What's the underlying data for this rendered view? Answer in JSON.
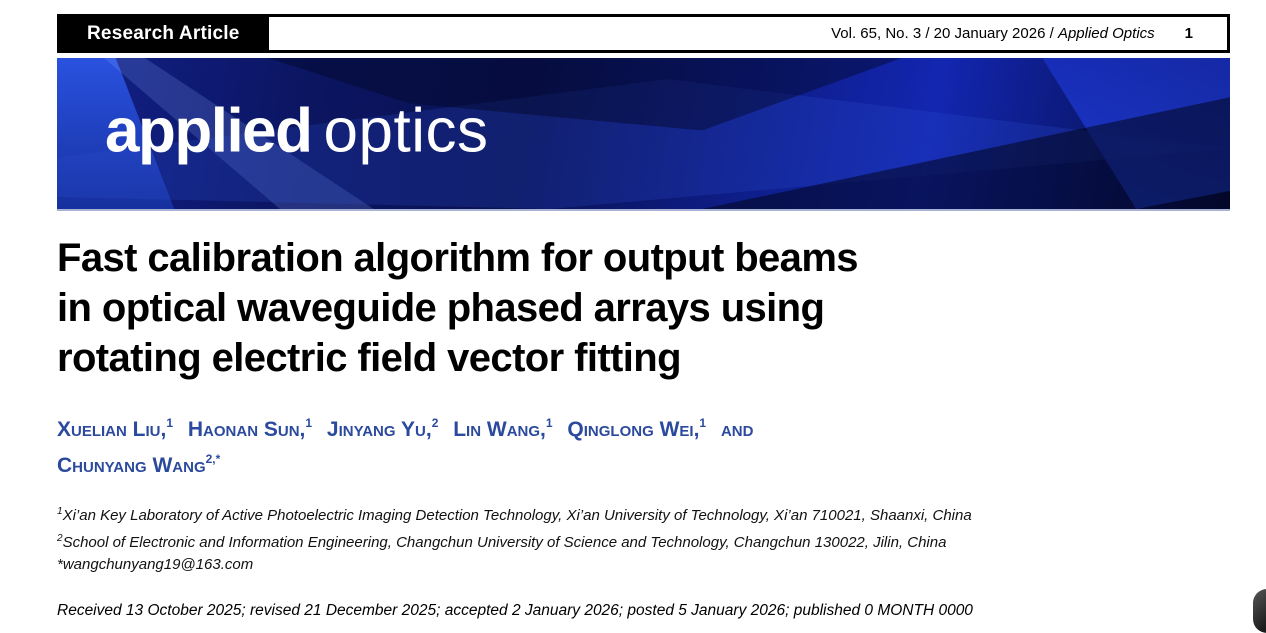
{
  "header": {
    "badge": "Research Article",
    "issue_info_regular": "Vol. 65, No. 3 / 20 January 2026 / ",
    "issue_info_italic": "Applied Optics",
    "page_number": "1"
  },
  "banner": {
    "logo_bold": "applied",
    "logo_light": "optics",
    "background_color": "#0a1252",
    "accent_color": "#2142e4"
  },
  "article": {
    "title_lines": [
      "Fast calibration algorithm for output beams",
      "in optical waveguide phased arrays using",
      "rotating electric field vector fitting"
    ],
    "authors": [
      {
        "name": "Xuelian Liu,",
        "sup": "1"
      },
      {
        "name": "Haonan Sun,",
        "sup": "1"
      },
      {
        "name": "Jinyang Yu,",
        "sup": "2"
      },
      {
        "name": "Lin Wang,",
        "sup": "1"
      },
      {
        "name": "Qinglong Wei,",
        "sup": "1"
      }
    ],
    "and_label": "and",
    "last_author": {
      "name": "Chunyang Wang",
      "sup": "2,*"
    },
    "author_color": "#2b4a9e",
    "affiliations": [
      {
        "sup": "1",
        "text": "Xi’an Key Laboratory of Active Photoelectric Imaging Detection Technology, Xi’an University of Technology, Xi’an 710021, Shaanxi, China"
      },
      {
        "sup": "2",
        "text": "School of Electronic and Information Engineering, Changchun University of Science and Technology, Changchun 130022, Jilin, China"
      }
    ],
    "email": "*wangchunyang19@163.com",
    "dates": "Received 13 October 2025; revised 21 December 2025; accepted 2 January 2026; posted 5 January 2026; published 0 MONTH 0000"
  }
}
